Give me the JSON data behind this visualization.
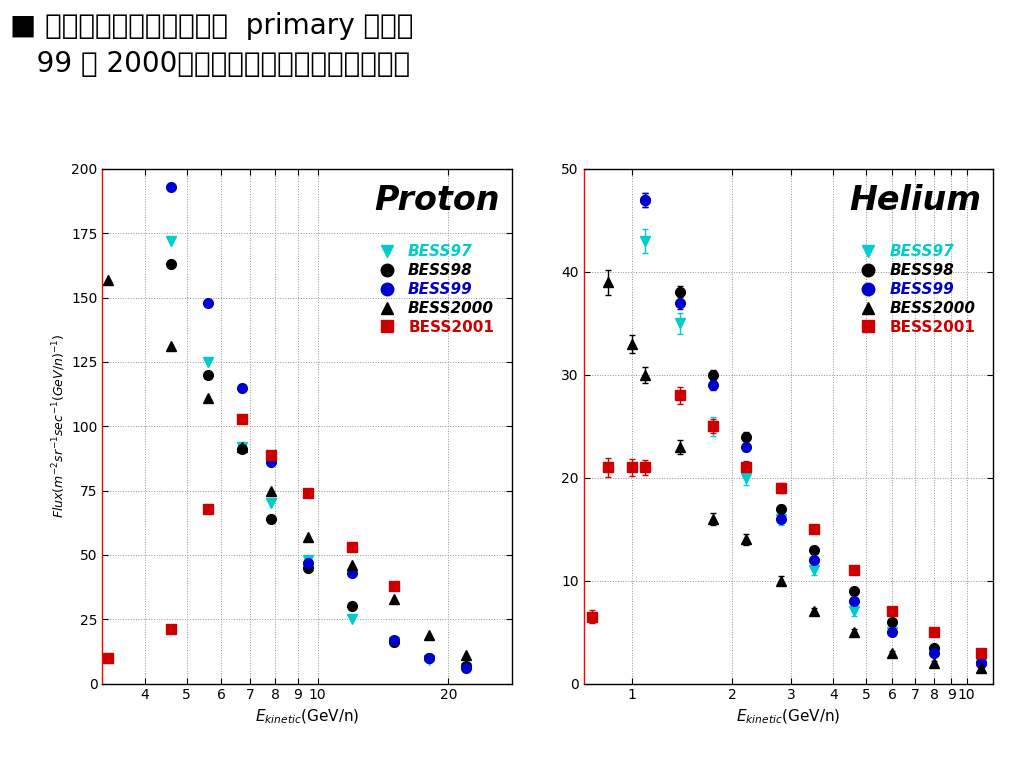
{
  "fig_bg": "#ffffff",
  "plot_bg": "#ffffff",
  "title_line1": "■ 太陽活動から予想される  primary 流束は",
  "title_line2": "   99 と 2000年の中間で、測定データは妚当",
  "proton_title": "Proton",
  "helium_title": "Helium",
  "ylabel": "$Flux(m^{-2}sr^{-1}sec^{-1}(GeV/n)^{-1})$",
  "xlabel": "$E_{kinetic}$(GeV/n)",
  "proton": {
    "ylim": [
      0,
      200
    ],
    "yticks": [
      0,
      25,
      50,
      75,
      100,
      125,
      150,
      175,
      200
    ],
    "xticks": [
      4,
      5,
      6,
      7,
      8,
      9,
      10,
      20
    ],
    "xlim": [
      3.2,
      28
    ],
    "bess97_x": [
      4.6,
      5.6,
      6.7,
      7.8,
      9.5,
      12.0,
      15.0,
      18.0,
      22.0
    ],
    "bess97_y": [
      172,
      125,
      92,
      70,
      48,
      25,
      16,
      9,
      6
    ],
    "bess98_x": [
      4.6,
      5.6,
      6.7,
      7.8,
      9.5,
      12.0,
      15.0,
      18.0,
      22.0
    ],
    "bess98_y": [
      163,
      120,
      91,
      64,
      45,
      30,
      16,
      10,
      7
    ],
    "bess99_x": [
      4.6,
      5.6,
      6.7,
      7.8,
      9.5,
      12.0,
      15.0,
      18.0,
      22.0
    ],
    "bess99_y": [
      193,
      148,
      115,
      86,
      47,
      43,
      17,
      10,
      6
    ],
    "bess2000_x": [
      3.3,
      4.6,
      5.6,
      6.7,
      7.8,
      9.5,
      12.0,
      15.0,
      18.0,
      22.0
    ],
    "bess2000_y": [
      157,
      131,
      111,
      92,
      75,
      57,
      46,
      33,
      19,
      11
    ],
    "bess2001_x": [
      3.3,
      4.6,
      5.6,
      6.7,
      7.8,
      9.5,
      12.0,
      15.0
    ],
    "bess2001_y": [
      10,
      21,
      68,
      103,
      89,
      74,
      53,
      38
    ]
  },
  "helium": {
    "ylim": [
      0,
      50
    ],
    "yticks": [
      0,
      10,
      20,
      30,
      40,
      50
    ],
    "xticks": [
      1,
      2,
      3,
      4,
      5,
      6,
      7,
      8,
      9,
      10
    ],
    "xlim": [
      0.72,
      12.0
    ],
    "bess97_x": [
      1.1,
      1.4,
      1.75,
      2.2,
      2.8,
      3.5,
      4.6,
      6.0,
      8.0,
      11.0
    ],
    "bess97_y": [
      43,
      35,
      25,
      20,
      16,
      11,
      7,
      5,
      3,
      2
    ],
    "bess97_ey": [
      1.2,
      1.0,
      0.9,
      0.7,
      0.6,
      0.5,
      0.4,
      0.3,
      0.2,
      0.15
    ],
    "bess98_x": [
      1.1,
      1.4,
      1.75,
      2.2,
      2.8,
      3.5,
      4.6,
      6.0,
      8.0,
      11.0
    ],
    "bess98_y": [
      47,
      38,
      30,
      24,
      17,
      13,
      9,
      6,
      3.5,
      2
    ],
    "bess98_ey": [
      0.7,
      0.6,
      0.5,
      0.4,
      0.35,
      0.3,
      0.25,
      0.2,
      0.15,
      0.12
    ],
    "bess99_x": [
      1.1,
      1.4,
      1.75,
      2.2,
      2.8,
      3.5,
      4.6,
      6.0,
      8.0,
      11.0
    ],
    "bess99_y": [
      47,
      37,
      29,
      23,
      16,
      12,
      8,
      5,
      3,
      2
    ],
    "bess99_ey": [
      0.7,
      0.6,
      0.5,
      0.4,
      0.35,
      0.3,
      0.25,
      0.2,
      0.15,
      0.12
    ],
    "bess2000_x": [
      0.85,
      1.0,
      1.1,
      1.4,
      1.75,
      2.2,
      2.8,
      3.5,
      4.6,
      6.0,
      8.0,
      11.0
    ],
    "bess2000_y": [
      39,
      33,
      30,
      23,
      16,
      14,
      10,
      7,
      5,
      3,
      2,
      1.5
    ],
    "bess2000_ey": [
      1.2,
      0.9,
      0.8,
      0.7,
      0.6,
      0.5,
      0.4,
      0.35,
      0.3,
      0.2,
      0.15,
      0.1
    ],
    "bess2001_x": [
      0.76,
      0.85,
      1.0,
      1.1,
      1.4,
      1.75,
      2.2,
      2.8,
      3.5,
      4.6,
      6.0,
      8.0,
      11.0
    ],
    "bess2001_y": [
      6.5,
      21,
      21,
      21,
      28,
      25,
      21,
      19,
      15,
      11,
      7,
      5,
      3
    ],
    "bess2001_ey": [
      0.6,
      0.9,
      0.8,
      0.7,
      0.8,
      0.7,
      0.6,
      0.5,
      0.4,
      0.35,
      0.3,
      0.25,
      0.2
    ]
  },
  "series": [
    {
      "key": "bess97",
      "label": "BESS97",
      "color": "#00cccc",
      "mfc": "#00cccc",
      "mec": "#00cccc",
      "marker": "v",
      "text_color": "#00cccc",
      "italic": true
    },
    {
      "key": "bess98",
      "label": "BESS98",
      "color": "#000000",
      "mfc": "#000000",
      "mec": "#000000",
      "marker": "o",
      "text_color": "#000000",
      "italic": true
    },
    {
      "key": "bess99",
      "label": "BESS99",
      "color": "#0000cc",
      "mfc": "#0000cc",
      "mec": "#0000cc",
      "marker": "o",
      "text_color": "#0000cc",
      "italic": true
    },
    {
      "key": "bess2000",
      "label": "BESS2000",
      "color": "#000000",
      "mfc": "#000000",
      "mec": "#000000",
      "marker": "^",
      "text_color": "#000000",
      "italic": true
    },
    {
      "key": "bess2001",
      "label": "BESS2001",
      "color": "#cc0000",
      "mfc": "#cc0000",
      "mec": "#cc0000",
      "marker": "s",
      "text_color": "#cc0000",
      "italic": false
    }
  ]
}
